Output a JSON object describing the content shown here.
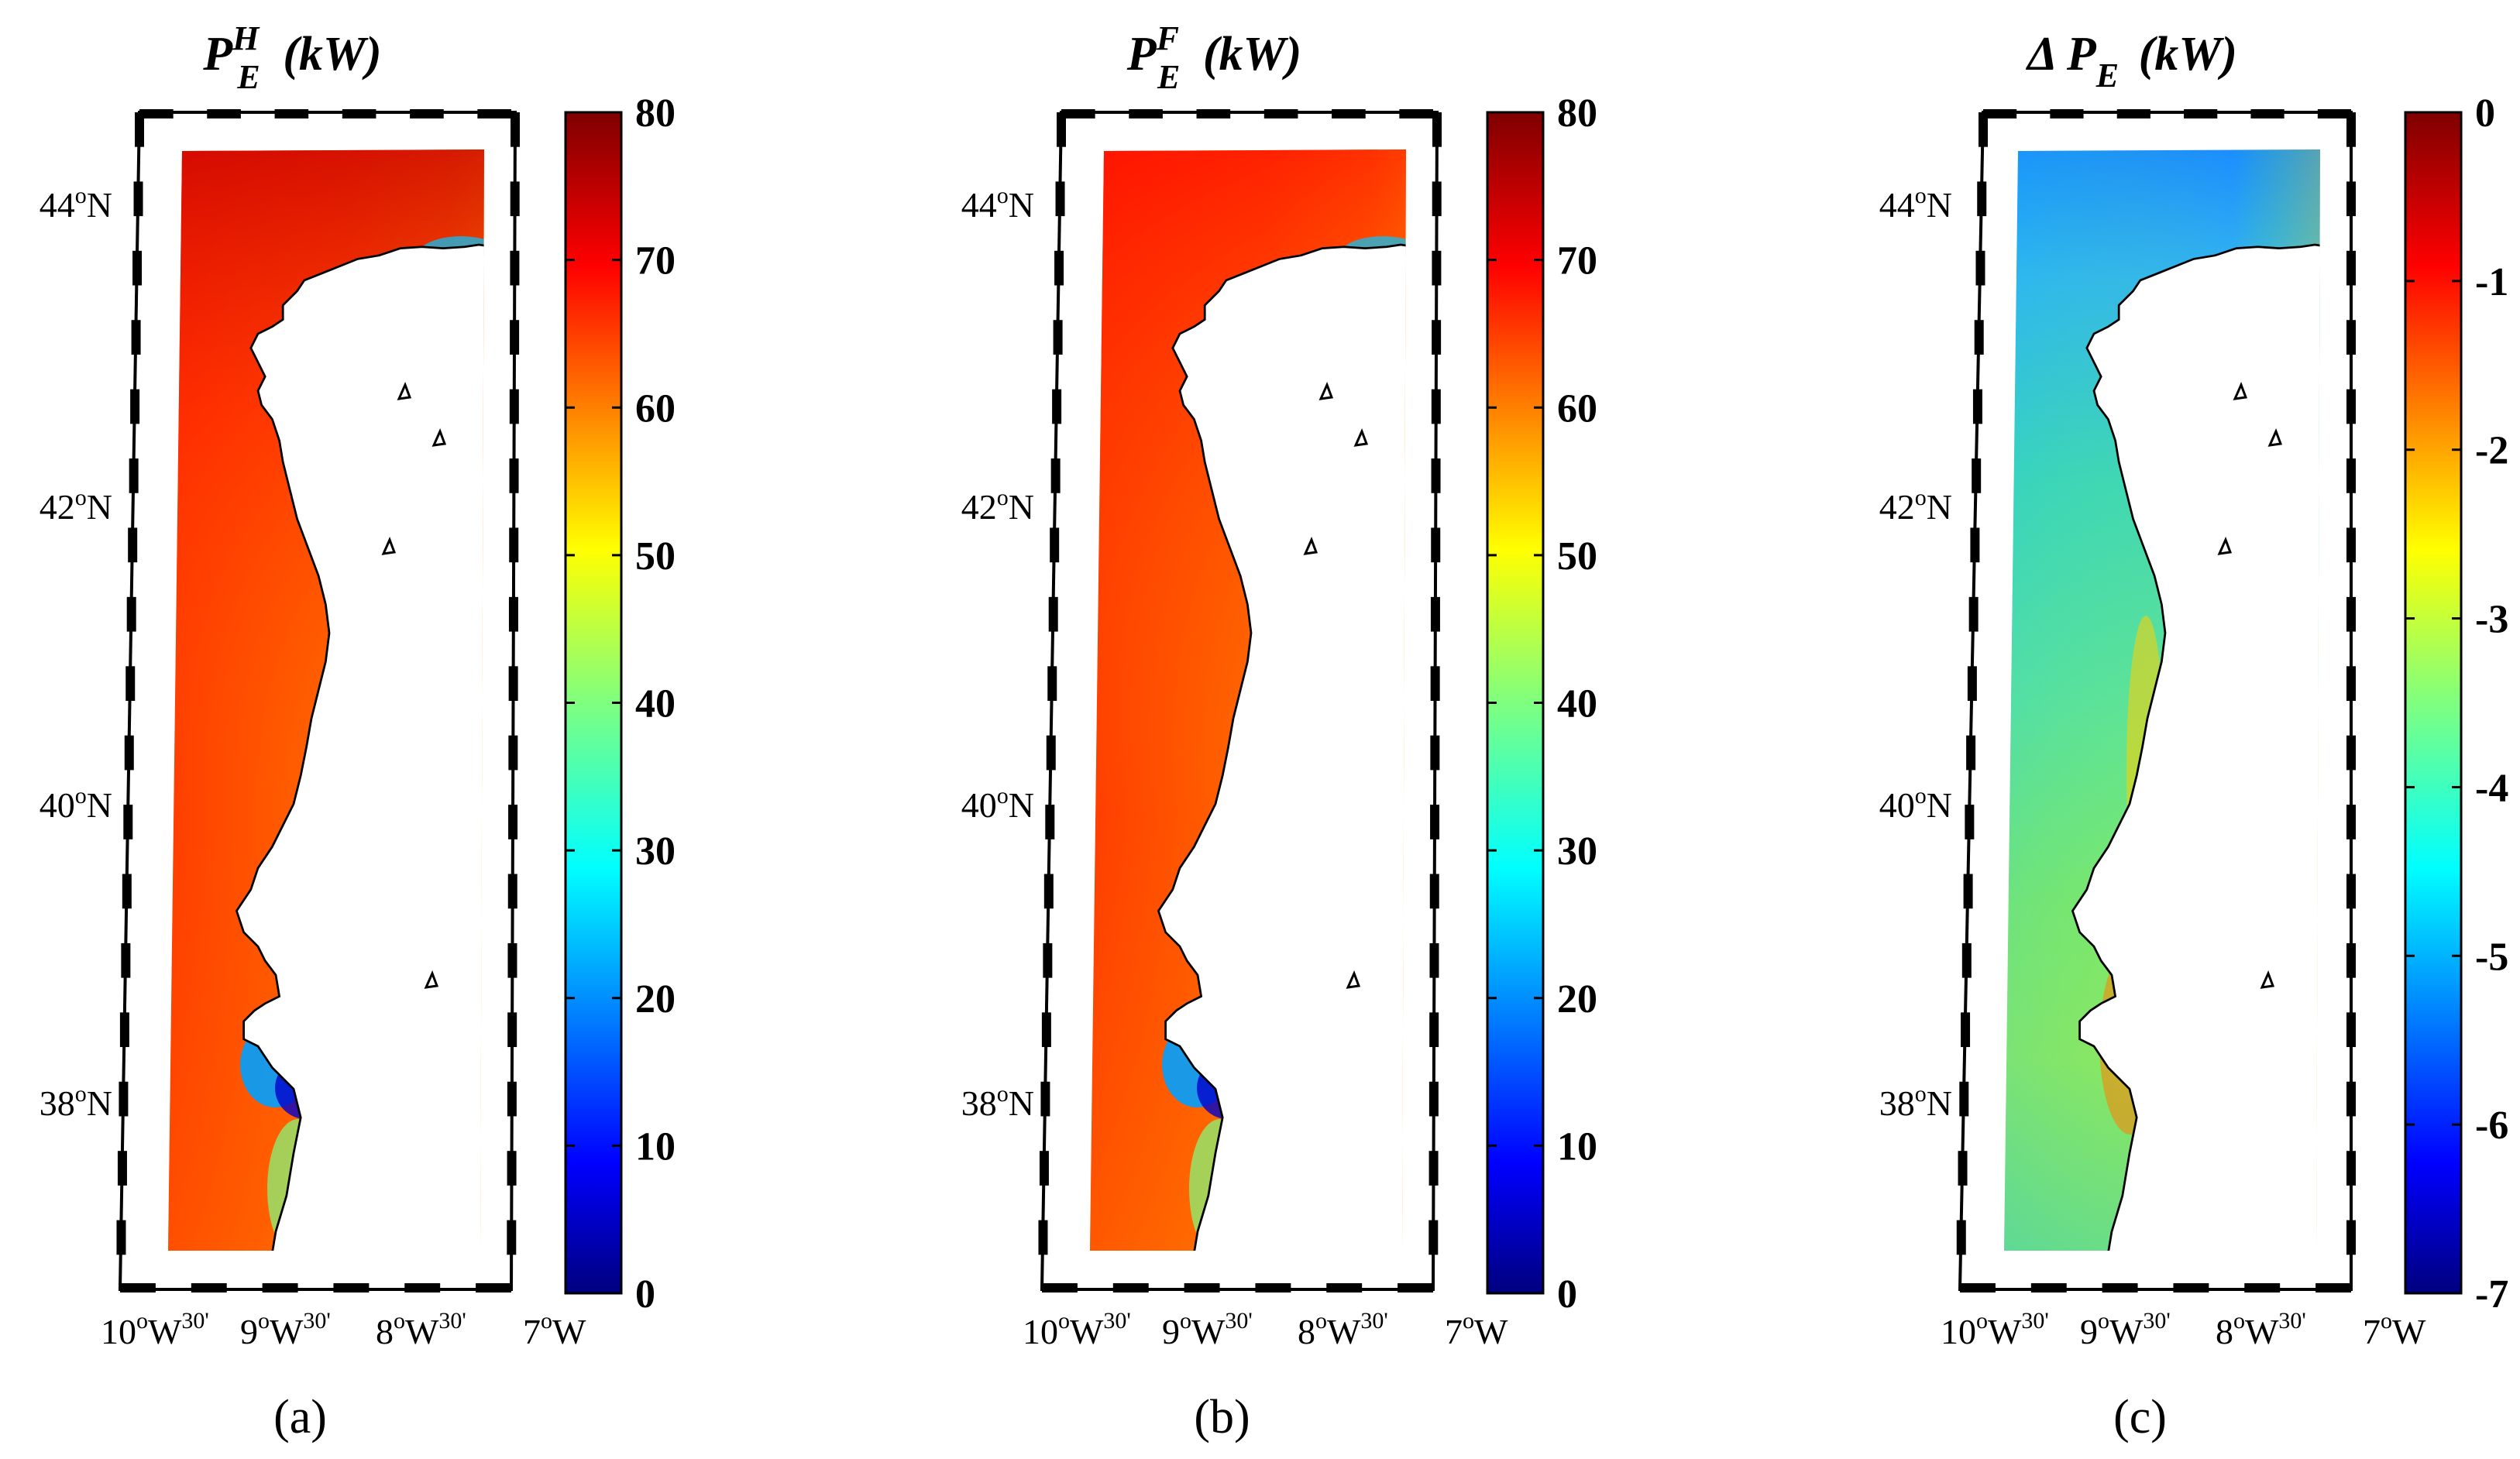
{
  "figure": {
    "panels": [
      {
        "id": "a",
        "label": "(a)",
        "title": {
          "main": "P",
          "subscript": "E",
          "superscript": "H",
          "unit": "(kW)"
        },
        "colorbar": {
          "min": 0,
          "max": 80,
          "ticks": [
            "0",
            "10",
            "20",
            "30",
            "40",
            "50",
            "60",
            "70",
            "80"
          ],
          "colormap": "jet"
        },
        "field": "hindcast wave energy",
        "coast_signal": "low values (blue) near coast and in Setubal bay, high values (red) offshore north"
      },
      {
        "id": "b",
        "label": "(b)",
        "title": {
          "main": "P",
          "subscript": "E",
          "superscript": "F",
          "unit": "(kW)"
        },
        "colorbar": {
          "min": 0,
          "max": 80,
          "ticks": [
            "0",
            "10",
            "20",
            "30",
            "40",
            "50",
            "60",
            "70",
            "80"
          ],
          "colormap": "jet"
        },
        "field": "future wave energy",
        "coast_signal": "low values (blue) near coast and in Setubal bay, high values (red) offshore north"
      },
      {
        "id": "c",
        "label": "(c)",
        "title": {
          "main": "Δ P",
          "subscript": "E",
          "superscript": "",
          "unit": "(kW)"
        },
        "colorbar": {
          "min": -7,
          "max": 0,
          "ticks": [
            "0",
            "-1",
            "-2",
            "-3",
            "-4",
            "-5",
            "-6",
            "-7"
          ],
          "colormap": "jet"
        },
        "field": "difference future minus hindcast",
        "coast_signal": "blue offshore north, green-yellow central, orange-red along southern coast"
      }
    ],
    "axes": {
      "lat_labels": [
        {
          "deg": "44",
          "sup": "o",
          "hem": "N"
        },
        {
          "deg": "42",
          "sup": "o",
          "hem": "N"
        },
        {
          "deg": "40",
          "sup": "o",
          "hem": "N"
        },
        {
          "deg": "38",
          "sup": "o",
          "hem": "N"
        }
      ],
      "lon_labels": [
        {
          "deg": "10",
          "sup": "o",
          "hem": "W",
          "min": "30'"
        },
        {
          "deg": "9",
          "sup": "o",
          "hem": "W",
          "min": "30'"
        },
        {
          "deg": "8",
          "sup": "o",
          "hem": "W",
          "min": "30'"
        },
        {
          "deg": "7",
          "sup": "o",
          "hem": "W",
          "min": ""
        }
      ]
    },
    "colors": {
      "jet": [
        "#00007f",
        "#0000ff",
        "#007fff",
        "#00ffff",
        "#7fff7f",
        "#ffff00",
        "#ff7f00",
        "#ff0000",
        "#7f0000"
      ],
      "frame": "#000000",
      "land": "#ffffff"
    }
  }
}
